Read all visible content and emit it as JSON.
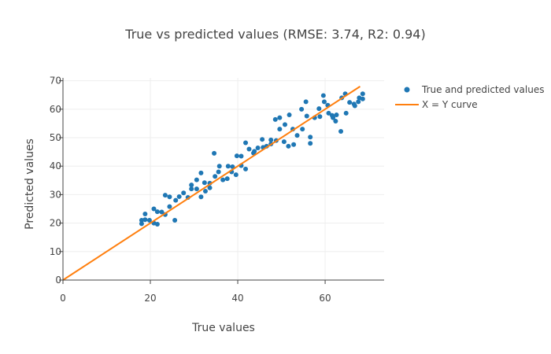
{
  "chart_data": {
    "type": "scatter",
    "title": "True vs predicted values (RMSE: 3.74, R2: 0.94)",
    "xlabel": "True values",
    "ylabel": "Predicted values",
    "xlim": [
      0,
      73.5
    ],
    "ylim": [
      0,
      71
    ],
    "x_ticks": [
      0,
      20,
      40,
      60
    ],
    "y_ticks": [
      0,
      10,
      20,
      30,
      40,
      50,
      60,
      70
    ],
    "grid": true,
    "legend_position": "top-right",
    "series": [
      {
        "name": "True and predicted values",
        "mode": "markers",
        "color": "#1f77b4",
        "points": [
          [
            18,
            19.8
          ],
          [
            18,
            21
          ],
          [
            18.8,
            21.2
          ],
          [
            18.8,
            23.2
          ],
          [
            19.8,
            21
          ],
          [
            20.8,
            25
          ],
          [
            20.8,
            20
          ],
          [
            21.6,
            19.6
          ],
          [
            21.6,
            24
          ],
          [
            22.6,
            23.9
          ],
          [
            23.4,
            29.8
          ],
          [
            23.4,
            23
          ],
          [
            24.4,
            29.2
          ],
          [
            24.4,
            25.8
          ],
          [
            25.6,
            21
          ],
          [
            25.8,
            28
          ],
          [
            26.6,
            29.3
          ],
          [
            27.6,
            30.6
          ],
          [
            28.6,
            29
          ],
          [
            29.4,
            32
          ],
          [
            29.4,
            33.4
          ],
          [
            30.6,
            35.2
          ],
          [
            30.6,
            32
          ],
          [
            31.6,
            37.6
          ],
          [
            31.6,
            29.2
          ],
          [
            32.4,
            34.2
          ],
          [
            32.6,
            31.2
          ],
          [
            33.6,
            32.4
          ],
          [
            33.6,
            34
          ],
          [
            34.6,
            44.5
          ],
          [
            34.8,
            36.4
          ],
          [
            35.6,
            38
          ],
          [
            35.8,
            40
          ],
          [
            36.6,
            35.2
          ],
          [
            37.6,
            35.6
          ],
          [
            37.8,
            40
          ],
          [
            38.6,
            38
          ],
          [
            38.8,
            39.8
          ],
          [
            39.6,
            37
          ],
          [
            39.8,
            43.6
          ],
          [
            40.8,
            43.5
          ],
          [
            40.8,
            40.2
          ],
          [
            41.8,
            48.2
          ],
          [
            41.8,
            39
          ],
          [
            42.6,
            46
          ],
          [
            43.6,
            44.6
          ],
          [
            43.8,
            45.2
          ],
          [
            44.6,
            46.4
          ],
          [
            45.6,
            49.4
          ],
          [
            45.8,
            46.6
          ],
          [
            46.6,
            47
          ],
          [
            47.6,
            49.2
          ],
          [
            47.6,
            47.8
          ],
          [
            48.6,
            56.4
          ],
          [
            48.8,
            49
          ],
          [
            49.6,
            57
          ],
          [
            49.6,
            53
          ],
          [
            50.6,
            48.6
          ],
          [
            50.8,
            54.6
          ],
          [
            51.6,
            47
          ],
          [
            51.8,
            58
          ],
          [
            52.6,
            53
          ],
          [
            52.8,
            47.6
          ],
          [
            53.6,
            50.8
          ],
          [
            54.6,
            60
          ],
          [
            54.8,
            53
          ],
          [
            55.6,
            62.6
          ],
          [
            55.8,
            57.6
          ],
          [
            56.6,
            48
          ],
          [
            56.6,
            50.2
          ],
          [
            57.6,
            57
          ],
          [
            58.6,
            60.2
          ],
          [
            58.8,
            57.4
          ],
          [
            59.6,
            64.8
          ],
          [
            59.8,
            62.6
          ],
          [
            60.6,
            61.4
          ],
          [
            60.8,
            58.6
          ],
          [
            61.6,
            57.8
          ],
          [
            61.8,
            57
          ],
          [
            62.4,
            55.8
          ],
          [
            62.6,
            58
          ],
          [
            63.6,
            52.2
          ],
          [
            63.8,
            64
          ],
          [
            64.6,
            65.4
          ],
          [
            64.8,
            58.6
          ],
          [
            65.6,
            62.4
          ],
          [
            66.6,
            61.8
          ],
          [
            66.8,
            61.2
          ],
          [
            67.6,
            62.6
          ],
          [
            67.8,
            64
          ],
          [
            68.6,
            63.6
          ],
          [
            68.6,
            65.4
          ]
        ]
      },
      {
        "name": "X = Y curve",
        "mode": "line",
        "color": "#ff7f0e",
        "points": [
          [
            0,
            0
          ],
          [
            68,
            68
          ]
        ]
      }
    ]
  }
}
